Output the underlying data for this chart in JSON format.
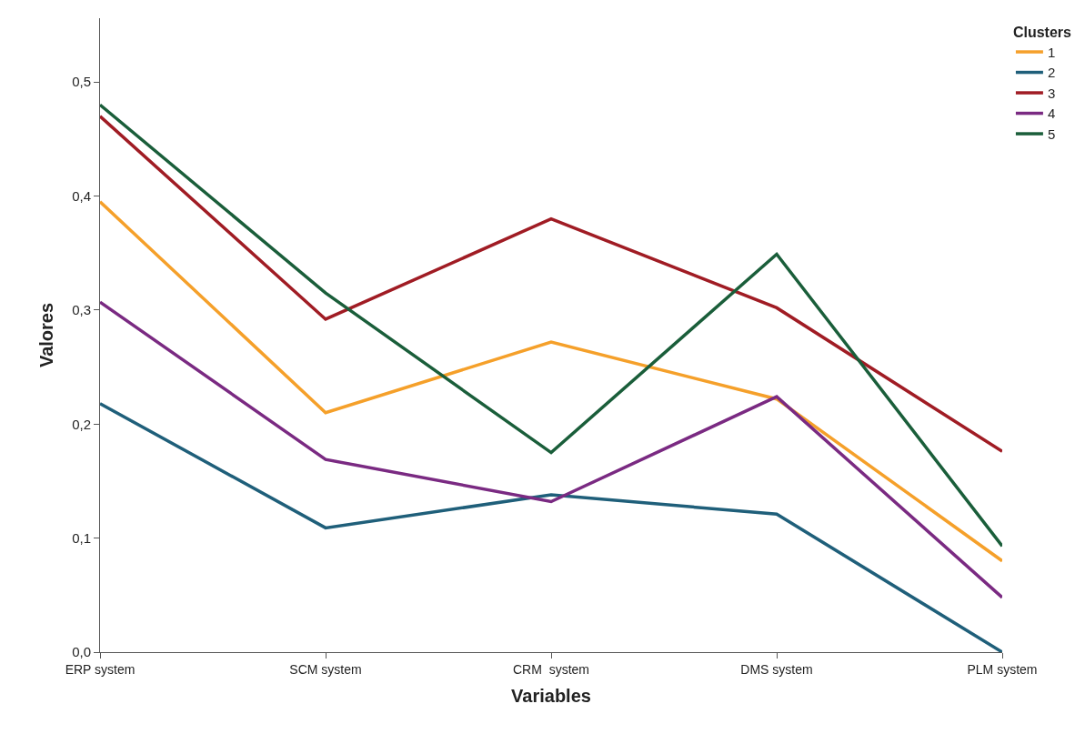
{
  "chart_data": {
    "type": "line",
    "xlabel": "Variables",
    "ylabel": "Valores",
    "legend_title": "Clusters",
    "categories": [
      "ERP system",
      "SCM system",
      "CRM  system",
      "DMS system",
      "PLM system"
    ],
    "series": [
      {
        "name": "1",
        "color": "#f5a02a",
        "values": [
          0.395,
          0.21,
          0.272,
          0.222,
          0.08
        ]
      },
      {
        "name": "2",
        "color": "#1f5f7a",
        "values": [
          0.218,
          0.109,
          0.138,
          0.121,
          0.0
        ]
      },
      {
        "name": "3",
        "color": "#a01c24",
        "values": [
          0.47,
          0.292,
          0.38,
          0.302,
          0.176
        ]
      },
      {
        "name": "4",
        "color": "#7a2a82",
        "values": [
          0.307,
          0.169,
          0.132,
          0.224,
          0.048
        ]
      },
      {
        "name": "5",
        "color": "#1a5e3a",
        "values": [
          0.48,
          0.315,
          0.175,
          0.349,
          0.093
        ]
      }
    ],
    "ylim": [
      0,
      0.556
    ],
    "yticks": [
      {
        "value": 0,
        "label": "0,0"
      },
      {
        "value": 0.1,
        "label": "0,1"
      },
      {
        "value": 0.2,
        "label": "0,2"
      },
      {
        "value": 0.3,
        "label": "0,3"
      },
      {
        "value": 0.4,
        "label": "0,4"
      },
      {
        "value": 0.5,
        "label": "0,5"
      }
    ],
    "legend": "top right",
    "marker": "none",
    "line_style": "solid"
  }
}
